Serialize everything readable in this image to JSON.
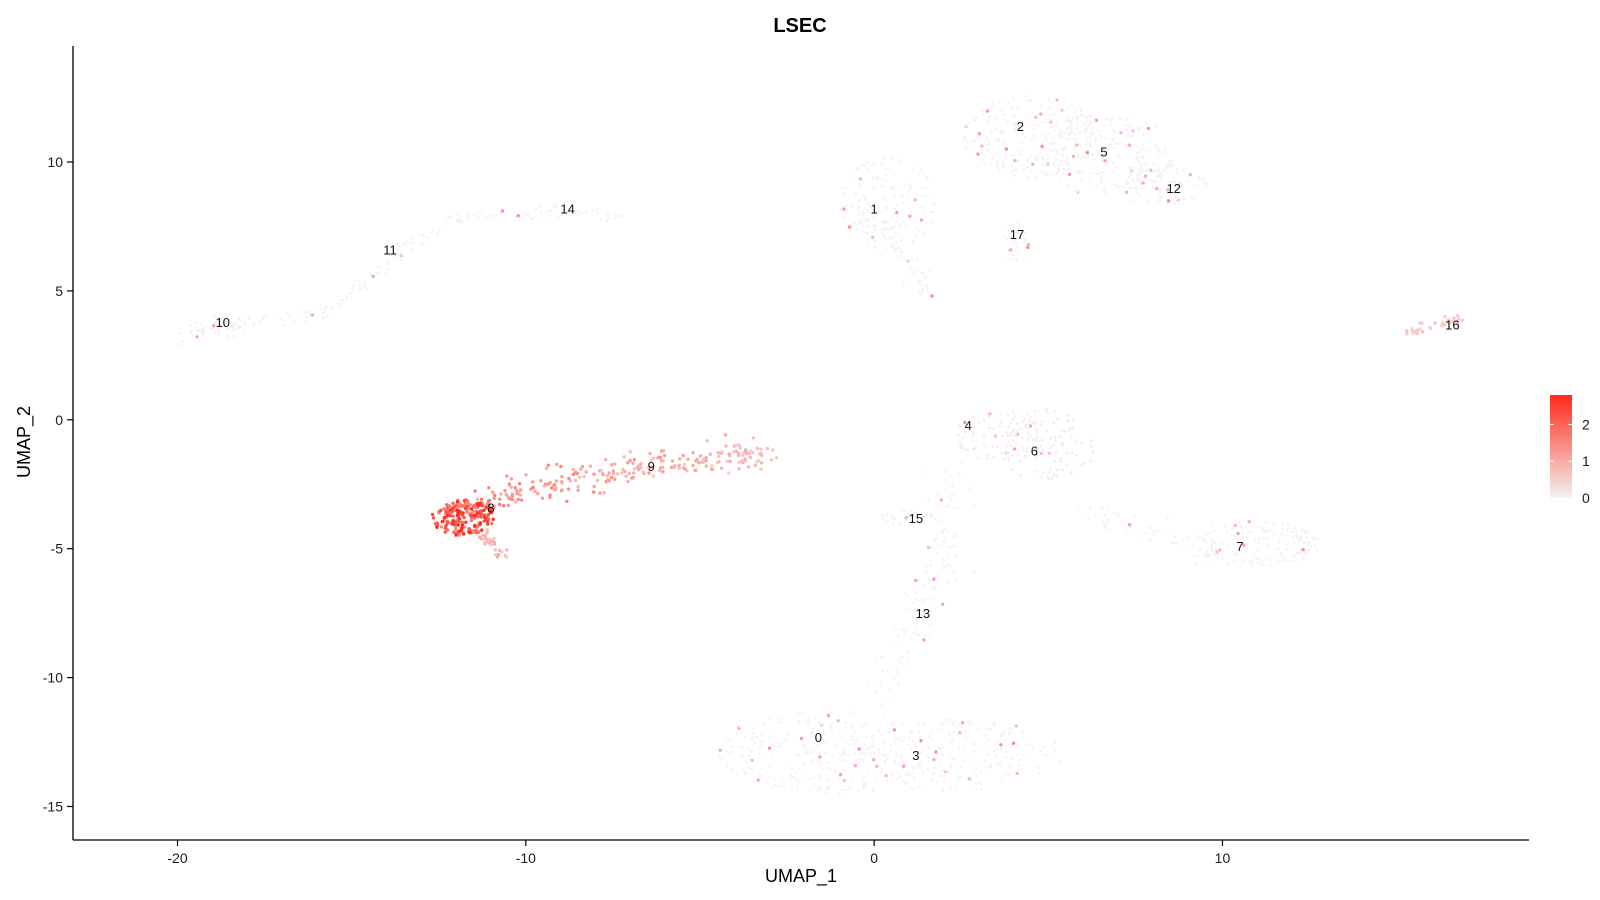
{
  "chart_data": {
    "type": "scatter",
    "title": "LSEC",
    "xlabel": "UMAP_1",
    "ylabel": "UMAP_2",
    "xlim": [
      -23,
      18.8
    ],
    "ylim": [
      -16.3,
      14.5
    ],
    "xticks": [
      -20,
      -10,
      0,
      10
    ],
    "yticks": [
      -15,
      -10,
      -5,
      0,
      5,
      10
    ],
    "grid": false,
    "color_scale": {
      "low": "#f3f3f3",
      "high": "#ff2a1a",
      "min": 0,
      "max": 2.8,
      "ticks": [
        0,
        1,
        2
      ]
    },
    "legend_position": "right",
    "cluster_labels": [
      {
        "label": "0",
        "x": -1.6,
        "y": -12.3
      },
      {
        "label": "1",
        "x": 0.0,
        "y": 8.2
      },
      {
        "label": "2",
        "x": 4.2,
        "y": 11.4
      },
      {
        "label": "3",
        "x": 1.2,
        "y": -13.0
      },
      {
        "label": "4",
        "x": 2.7,
        "y": -0.2
      },
      {
        "label": "5",
        "x": 6.6,
        "y": 10.4
      },
      {
        "label": "6",
        "x": 4.6,
        "y": -1.2
      },
      {
        "label": "7",
        "x": 10.5,
        "y": -4.9
      },
      {
        "label": "8",
        "x": -11.0,
        "y": -3.4
      },
      {
        "label": "9",
        "x": -6.4,
        "y": -1.8
      },
      {
        "label": "10",
        "x": -18.7,
        "y": 3.8
      },
      {
        "label": "11",
        "x": -13.9,
        "y": 6.6
      },
      {
        "label": "12",
        "x": 8.6,
        "y": 9.0
      },
      {
        "label": "13",
        "x": 1.4,
        "y": -7.5
      },
      {
        "label": "14",
        "x": -8.8,
        "y": 8.2
      },
      {
        "label": "15",
        "x": 1.2,
        "y": -3.8
      },
      {
        "label": "16",
        "x": 16.6,
        "y": 3.7
      },
      {
        "label": "17",
        "x": 4.1,
        "y": 7.2
      }
    ],
    "clusters": [
      {
        "cluster": "0",
        "shape": "ellipse",
        "cx": -1.3,
        "cy": -12.9,
        "rx": 3.3,
        "ry": 1.6,
        "n": 260,
        "expr": 0.0
      },
      {
        "cluster": "3",
        "shape": "ellipse",
        "cx": 2.2,
        "cy": -13.0,
        "rx": 3.2,
        "ry": 1.4,
        "n": 200,
        "expr": 0.0
      },
      {
        "cluster": "1",
        "shape": "ellipse",
        "cx": 0.4,
        "cy": 8.4,
        "rx": 1.4,
        "ry": 1.8,
        "n": 150,
        "expr": 0.0
      },
      {
        "cluster": "1-tail",
        "shape": "line",
        "points": [
          [
            0.2,
            7.2
          ],
          [
            1.2,
            5.8
          ],
          [
            1.4,
            4.9
          ]
        ],
        "n": 40,
        "spread": 0.25,
        "expr": 0.0
      },
      {
        "cluster": "2",
        "shape": "ellipse",
        "cx": 4.5,
        "cy": 11.0,
        "rx": 2.0,
        "ry": 1.6,
        "n": 220,
        "expr": 0.0
      },
      {
        "cluster": "5",
        "shape": "ellipse",
        "cx": 6.6,
        "cy": 10.3,
        "rx": 2.0,
        "ry": 1.6,
        "n": 220,
        "expr": 0.0
      },
      {
        "cluster": "12",
        "shape": "ellipse",
        "cx": 8.3,
        "cy": 9.1,
        "rx": 1.3,
        "ry": 0.8,
        "n": 90,
        "expr": 0.0
      },
      {
        "cluster": "17",
        "shape": "ellipse",
        "cx": 4.1,
        "cy": 6.8,
        "rx": 0.4,
        "ry": 0.9,
        "n": 30,
        "expr": 0.0
      },
      {
        "cluster": "4",
        "shape": "ellipse",
        "cx": 3.6,
        "cy": -0.6,
        "rx": 1.4,
        "ry": 1.0,
        "n": 90,
        "expr": 0.1
      },
      {
        "cluster": "6",
        "shape": "ellipse",
        "cx": 5.0,
        "cy": -1.0,
        "rx": 1.4,
        "ry": 1.4,
        "n": 90,
        "expr": 0.15
      },
      {
        "cluster": "7",
        "shape": "ellipse",
        "cx": 11.0,
        "cy": -4.8,
        "rx": 1.8,
        "ry": 0.9,
        "n": 160,
        "expr": 0.0
      },
      {
        "cluster": "7-tail",
        "shape": "line",
        "points": [
          [
            6.0,
            -3.6
          ],
          [
            8.5,
            -4.6
          ],
          [
            10.0,
            -5.2
          ]
        ],
        "n": 60,
        "spread": 0.25,
        "expr": 0.0
      },
      {
        "cluster": "13",
        "shape": "line",
        "points": [
          [
            2.2,
            -2.0
          ],
          [
            1.9,
            -5.5
          ],
          [
            1.3,
            -7.5
          ],
          [
            0.6,
            -9.5
          ],
          [
            0.0,
            -11.0
          ]
        ],
        "n": 130,
        "spread": 0.5,
        "expr": 0.0
      },
      {
        "cluster": "15",
        "shape": "ellipse",
        "cx": 1.0,
        "cy": -3.8,
        "rx": 0.8,
        "ry": 0.3,
        "n": 40,
        "expr": 0.0
      },
      {
        "cluster": "14",
        "shape": "line",
        "points": [
          [
            -12.0,
            7.8
          ],
          [
            -9.5,
            8.1
          ],
          [
            -7.2,
            7.9
          ]
        ],
        "n": 70,
        "spread": 0.12,
        "expr": 0.0
      },
      {
        "cluster": "11",
        "shape": "line",
        "points": [
          [
            -17.2,
            3.9
          ],
          [
            -15.5,
            4.3
          ],
          [
            -14.2,
            5.8
          ],
          [
            -13.0,
            7.2
          ],
          [
            -12.0,
            7.8
          ]
        ],
        "n": 90,
        "spread": 0.15,
        "expr": 0.0
      },
      {
        "cluster": "10",
        "shape": "line",
        "points": [
          [
            -20.0,
            3.2
          ],
          [
            -19.0,
            3.6
          ],
          [
            -17.5,
            3.8
          ]
        ],
        "n": 60,
        "spread": 0.2,
        "expr": 0.05
      },
      {
        "cluster": "16",
        "shape": "line",
        "points": [
          [
            15.2,
            3.3
          ],
          [
            16.0,
            3.7
          ],
          [
            16.9,
            3.8
          ]
        ],
        "n": 35,
        "spread": 0.15,
        "expr": 0.6
      },
      {
        "cluster": "9",
        "shape": "line",
        "points": [
          [
            -11.5,
            -3.3
          ],
          [
            -9.5,
            -2.6
          ],
          [
            -7.0,
            -2.0
          ],
          [
            -5.0,
            -1.6
          ],
          [
            -3.0,
            -1.3
          ]
        ],
        "n": 260,
        "spread": 0.3,
        "expr": 1.6,
        "expr_end": 0.8
      },
      {
        "cluster": "8",
        "shape": "ellipse",
        "cx": -11.8,
        "cy": -3.8,
        "rx": 0.9,
        "ry": 0.7,
        "n": 190,
        "expr": 2.6
      },
      {
        "cluster": "8-tail",
        "shape": "line",
        "points": [
          [
            -11.4,
            -4.3
          ],
          [
            -11.0,
            -4.8
          ],
          [
            -10.6,
            -5.3
          ]
        ],
        "n": 35,
        "spread": 0.12,
        "expr": 0.9
      }
    ]
  }
}
